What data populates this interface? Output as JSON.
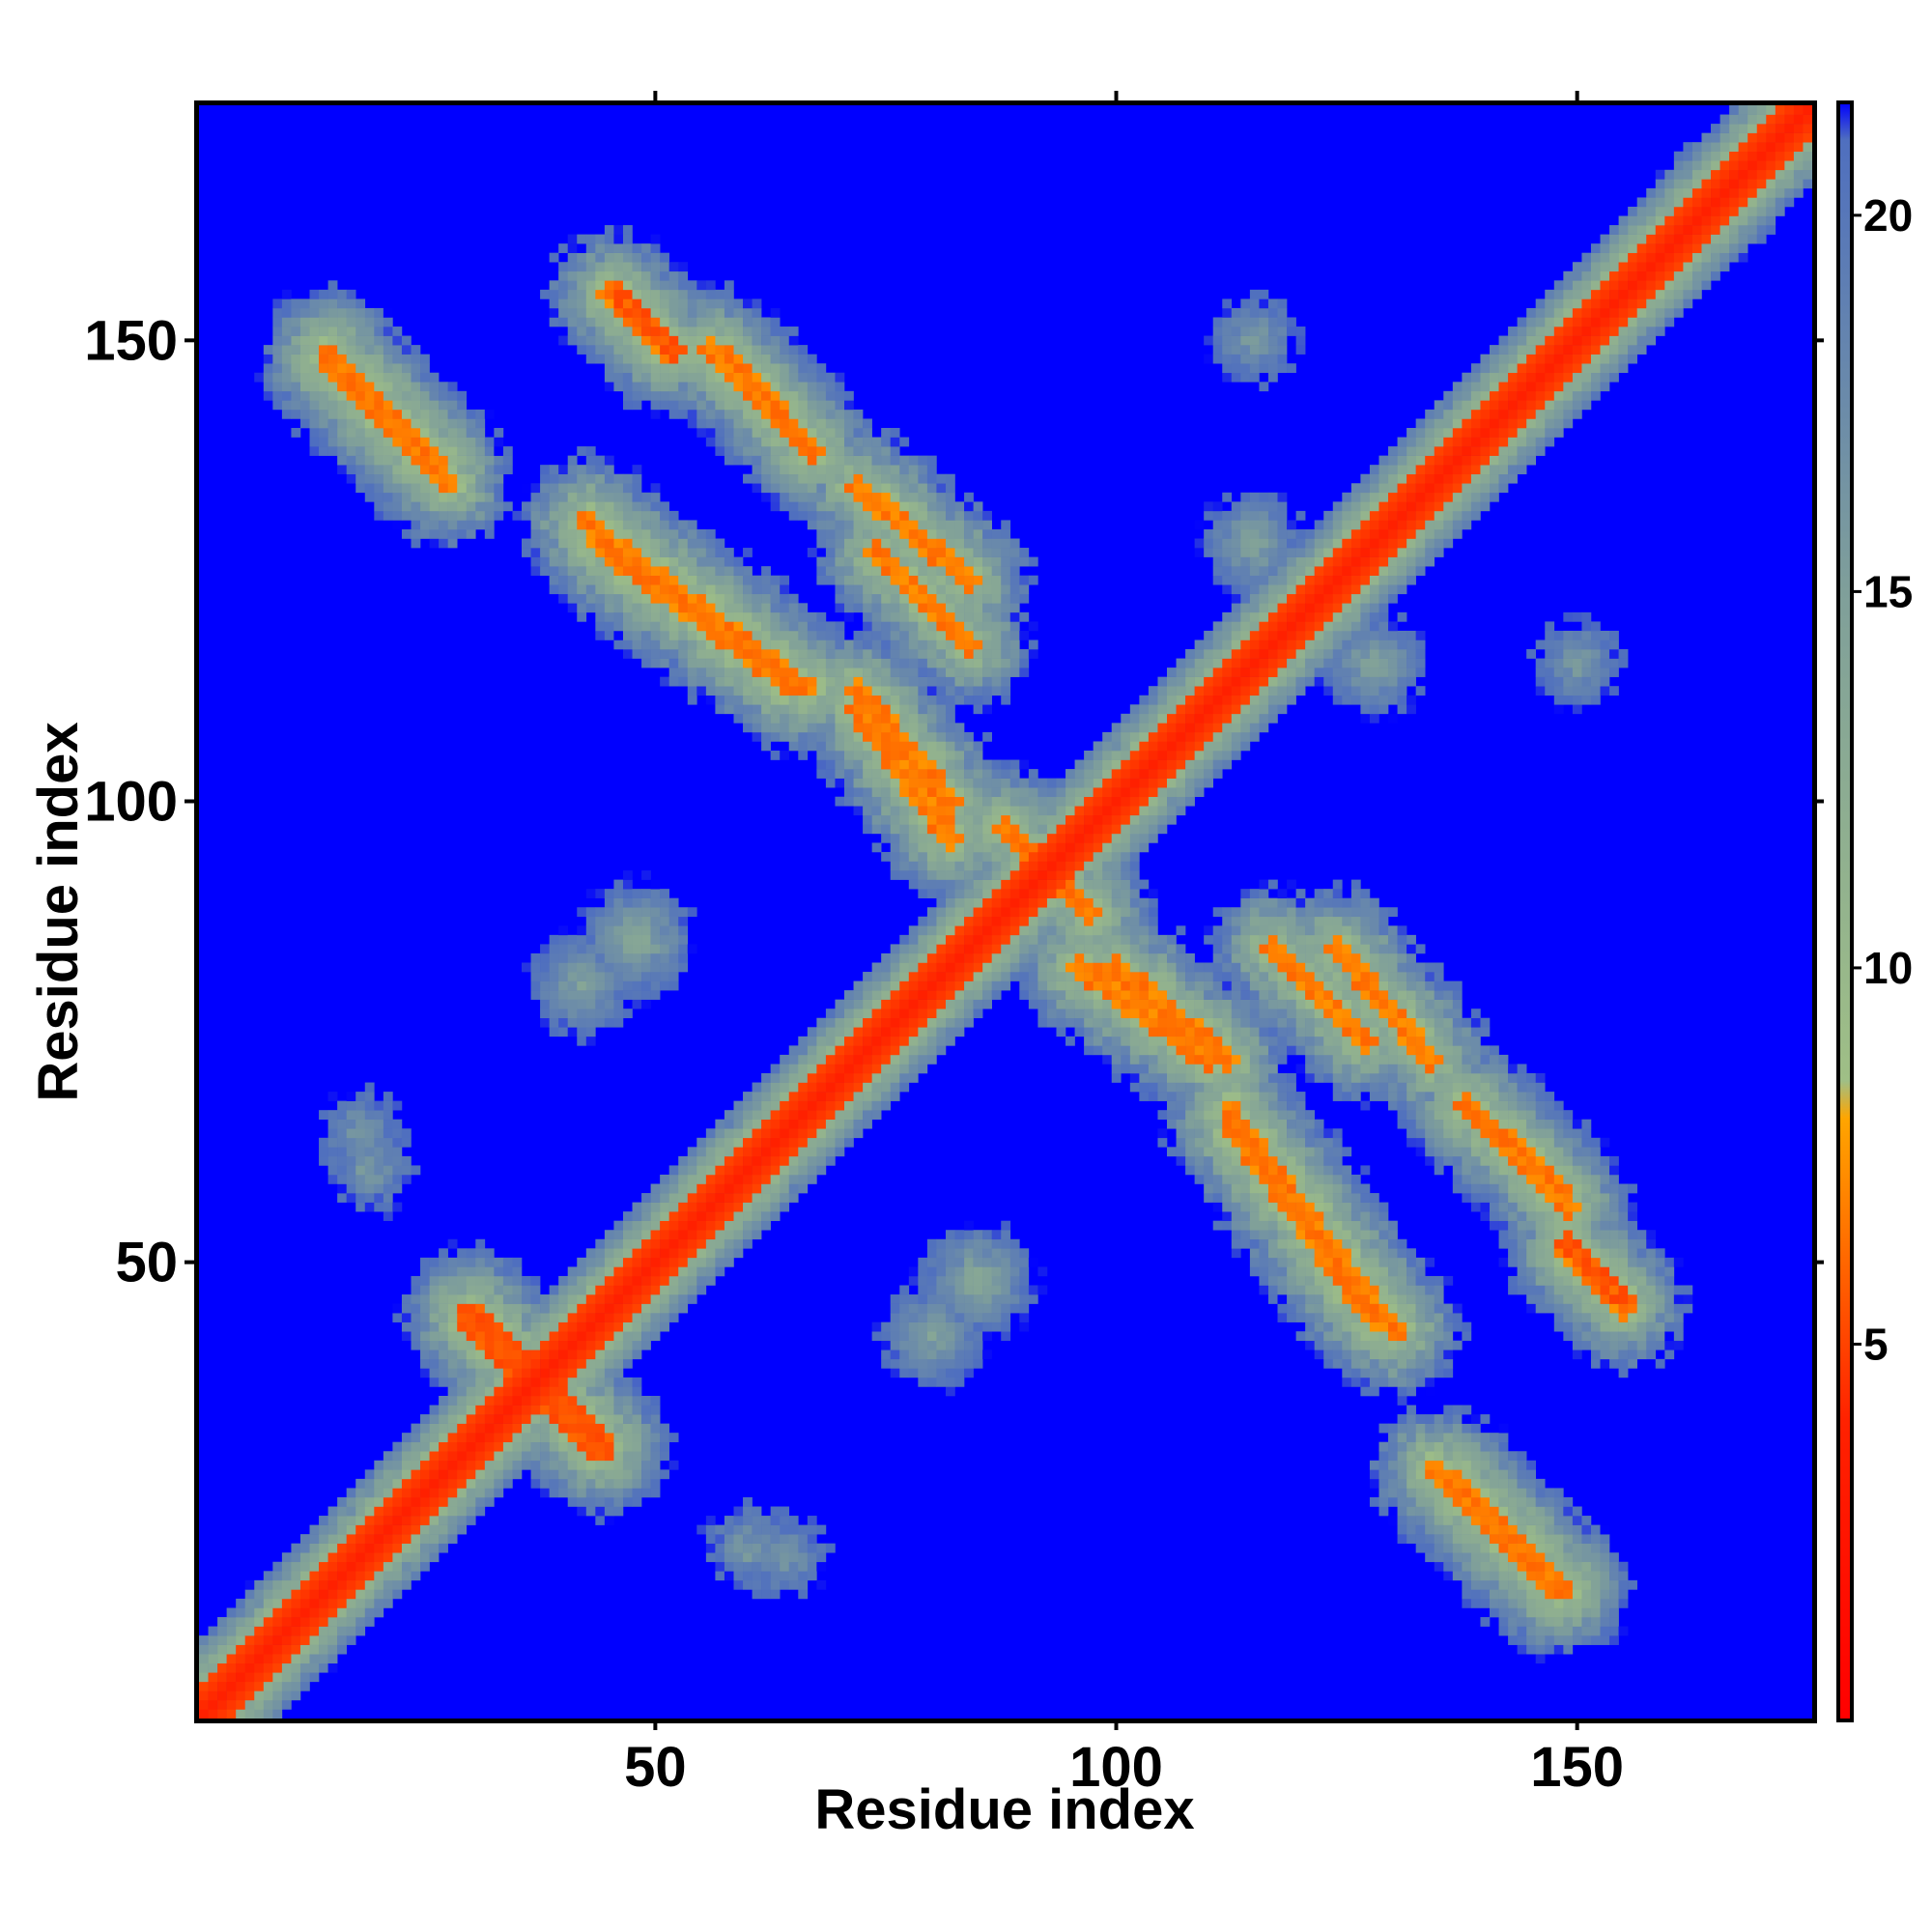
{
  "chart_data": {
    "type": "heatmap",
    "title": "",
    "xlabel": "Residue index",
    "ylabel": "Residue index",
    "n_residues": 175,
    "xlim": [
      1,
      175
    ],
    "ylim": [
      1,
      175
    ],
    "x_ticks": [
      50,
      100,
      150
    ],
    "y_ticks": [
      50,
      100,
      150
    ],
    "colorbar": {
      "ticks": [
        5,
        10,
        15,
        20
      ],
      "range": [
        0,
        21.5
      ],
      "stops": [
        {
          "value": 0,
          "color": "#ff0000"
        },
        {
          "value": 4,
          "color": "#ff2200"
        },
        {
          "value": 8,
          "color": "#ffa500"
        },
        {
          "value": 8.5,
          "color": "#9fbf86"
        },
        {
          "value": 15,
          "color": "#7f9f9a"
        },
        {
          "value": 21,
          "color": "#4f6fbf"
        },
        {
          "value": 21.5,
          "color": "#0000ff"
        }
      ]
    },
    "cutoff": 21.5,
    "background_color": "#0000ff",
    "diagonal": {
      "value": 3.8,
      "halfwidth": 3
    },
    "contact_bands": [
      {
        "from": [
          14,
          148
        ],
        "to": [
          27,
          134
        ],
        "value": 6,
        "width": 2.5
      },
      {
        "from": [
          46,
          155
        ],
        "to": [
          52,
          149
        ],
        "value": 5,
        "width": 2
      },
      {
        "from": [
          58,
          148
        ],
        "to": [
          67,
          138
        ],
        "value": 6,
        "width": 2
      },
      {
        "from": [
          43,
          128
        ],
        "to": [
          65,
          112
        ],
        "value": 6,
        "width": 2.5
      },
      {
        "from": [
          74,
          127
        ],
        "to": [
          84,
          117
        ],
        "value": 6,
        "width": 2
      },
      {
        "from": [
          72,
          112
        ],
        "to": [
          82,
          100
        ],
        "value": 6,
        "width": 2
      },
      {
        "from": [
          96,
          82
        ],
        "to": [
          110,
          72
        ],
        "value": 6,
        "width": 2
      },
      {
        "from": [
          124,
          84
        ],
        "to": [
          134,
          72
        ],
        "value": 6,
        "width": 2
      },
      {
        "from": [
          112,
          66
        ],
        "to": [
          130,
          42
        ],
        "value": 6,
        "width": 2.5
      },
      {
        "from": [
          138,
          67
        ],
        "to": [
          149,
          56
        ],
        "value": 6,
        "width": 2
      },
      {
        "from": [
          149,
          51
        ],
        "to": [
          155,
          45
        ],
        "value": 6,
        "width": 2
      },
      {
        "from": [
          136,
          26
        ],
        "to": [
          148,
          14
        ],
        "value": 6,
        "width": 2.5
      },
      {
        "from": [
          30,
          44
        ],
        "to": [
          44,
          30
        ],
        "value": 5,
        "width": 3
      },
      {
        "from": [
          88,
          97
        ],
        "to": [
          97,
          88
        ],
        "value": 6,
        "width": 2
      }
    ],
    "moderate_blobs": [
      {
        "center": [
          18,
          64
        ],
        "value": 14,
        "radius": 5
      },
      {
        "center": [
          60,
          19
        ],
        "value": 14,
        "radius": 5
      },
      {
        "center": [
          115,
          150
        ],
        "value": 14,
        "radius": 6
      },
      {
        "center": [
          150,
          115
        ],
        "value": 14,
        "radius": 6
      },
      {
        "center": [
          42,
          80
        ],
        "value": 13,
        "radius": 5
      },
      {
        "center": [
          80,
          42
        ],
        "value": 13,
        "radius": 5
      },
      {
        "center": [
          85,
          48
        ],
        "value": 12,
        "radius": 5
      },
      {
        "center": [
          48,
          85
        ],
        "value": 12,
        "radius": 5
      },
      {
        "center": [
          115,
          128
        ],
        "value": 13,
        "radius": 5
      },
      {
        "center": [
          128,
          115
        ],
        "value": 13,
        "radius": 5
      },
      {
        "center": [
          10,
          10
        ],
        "value": 12,
        "radius": 6
      },
      {
        "center": [
          165,
          165
        ],
        "value": 12,
        "radius": 6
      }
    ]
  }
}
